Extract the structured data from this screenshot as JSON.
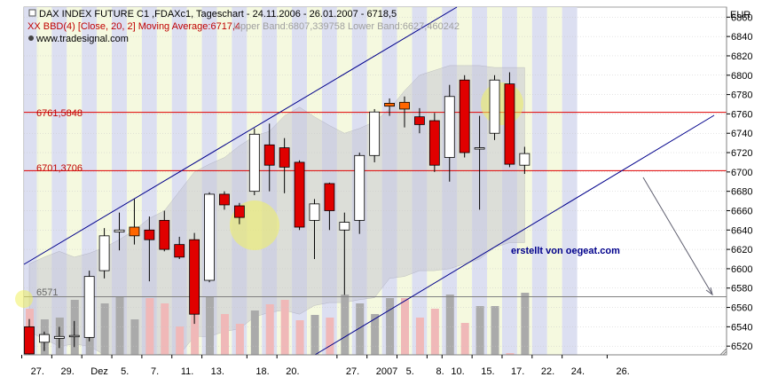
{
  "header": {
    "line1": "DAX INDEX FUTURE C1 ,FDAXc1, Tageschart - 24.11.2006 - 26.01.2007 - 6718,5",
    "line2_series": "XX BBD(4) [Close, 20, 2] Moving Average:6717,4",
    "line2_bands": "Upper Band:6807,339758 Lower Band:6627,460242",
    "line3": "www.tradesignal.com",
    "currency": "EUR"
  },
  "colors": {
    "up_candle": "#ffffff",
    "down_candle": "#e00000",
    "channel": "#00008b",
    "level_line": "#e00000",
    "band_fill": "#c8c8d4",
    "volume_up": "#aaaaaa",
    "volume_down": "#f0b8b8",
    "highlight": "#f0f060",
    "stripe_a": "#d8dcf0",
    "stripe_b": "#f4f8dc"
  },
  "annotations": {
    "credit": "erstellt von oegeat.com",
    "level_high": "6761,5848",
    "level_low": "6701,3706",
    "level_volume": "6571"
  },
  "chart_data": {
    "type": "candlestick",
    "title": "DAX INDEX FUTURE C1 ,FDAXc1, Tageschart - 24.11.2006 - 26.01.2007 - 6718,5",
    "y_unit": "EUR",
    "ylim": [
      6510,
      6870
    ],
    "y_ticks": [
      6520,
      6540,
      6560,
      6580,
      6600,
      6620,
      6640,
      6660,
      6680,
      6700,
      6720,
      6740,
      6760,
      6780,
      6800,
      6820,
      6840,
      6860
    ],
    "x_tick_labels": [
      "27.",
      "29.",
      "Dez",
      "5.",
      "7.",
      "11.",
      "13.",
      "18.",
      "20.",
      "27.",
      "2007",
      "5.",
      "8.",
      "10.",
      "15.",
      "17.",
      "22.",
      "24.",
      "26."
    ],
    "horizontal_levels": [
      6761.5848,
      6701.3706,
      6571
    ],
    "candles": [
      {
        "o": 6540,
        "h": 6548,
        "l": 6510,
        "c": 6512
      },
      {
        "o": 6524,
        "h": 6535,
        "l": 6515,
        "c": 6532
      },
      {
        "o": 6528,
        "h": 6540,
        "l": 6518,
        "c": 6530
      },
      {
        "o": 6530,
        "h": 6546,
        "l": 6519,
        "c": 6531
      },
      {
        "o": 6529,
        "h": 6598,
        "l": 6525,
        "c": 6592
      },
      {
        "o": 6598,
        "h": 6642,
        "l": 6590,
        "c": 6634
      },
      {
        "o": 6638,
        "h": 6658,
        "l": 6619,
        "c": 6640
      },
      {
        "o": 6634,
        "h": 6672,
        "l": 6625,
        "c": 6643
      },
      {
        "o": 6640,
        "h": 6654,
        "l": 6587,
        "c": 6630
      },
      {
        "o": 6650,
        "h": 6660,
        "l": 6618,
        "c": 6620
      },
      {
        "o": 6625,
        "h": 6633,
        "l": 6610,
        "c": 6612
      },
      {
        "o": 6630,
        "h": 6637,
        "l": 6543,
        "c": 6553
      },
      {
        "o": 6588,
        "h": 6679,
        "l": 6586,
        "c": 6677
      },
      {
        "o": 6677,
        "h": 6680,
        "l": 6661,
        "c": 6666
      },
      {
        "o": 6665,
        "h": 6668,
        "l": 6646,
        "c": 6653
      },
      {
        "o": 6680,
        "h": 6745,
        "l": 6676,
        "c": 6739
      },
      {
        "o": 6728,
        "h": 6750,
        "l": 6680,
        "c": 6707
      },
      {
        "o": 6725,
        "h": 6735,
        "l": 6678,
        "c": 6705
      },
      {
        "o": 6710,
        "h": 6712,
        "l": 6640,
        "c": 6643
      },
      {
        "o": 6650,
        "h": 6672,
        "l": 6610,
        "c": 6667
      },
      {
        "o": 6688,
        "h": 6689,
        "l": 6640,
        "c": 6660
      },
      {
        "o": 6640,
        "h": 6658,
        "l": 6573,
        "c": 6648
      },
      {
        "o": 6650,
        "h": 6720,
        "l": 6636,
        "c": 6717
      },
      {
        "o": 6717,
        "h": 6765,
        "l": 6710,
        "c": 6762
      },
      {
        "o": 6768,
        "h": 6776,
        "l": 6758,
        "c": 6771
      },
      {
        "o": 6772,
        "h": 6778,
        "l": 6746,
        "c": 6765
      },
      {
        "o": 6757,
        "h": 6766,
        "l": 6740,
        "c": 6749
      },
      {
        "o": 6753,
        "h": 6761,
        "l": 6700,
        "c": 6707
      },
      {
        "o": 6715,
        "h": 6790,
        "l": 6690,
        "c": 6778
      },
      {
        "o": 6795,
        "h": 6800,
        "l": 6715,
        "c": 6720
      },
      {
        "o": 6725,
        "h": 6758,
        "l": 6661,
        "c": 6725
      },
      {
        "o": 6740,
        "h": 6800,
        "l": 6733,
        "c": 6795
      },
      {
        "o": 6791,
        "h": 6803,
        "l": 6705,
        "c": 6708
      },
      {
        "o": 6707,
        "h": 6726,
        "l": 6698,
        "c": 6719
      }
    ],
    "volume_relative": [
      0.52,
      0.4,
      0.42,
      0.62,
      0.7,
      0.58,
      0.66,
      0.4,
      0.64,
      0.58,
      0.32,
      0.6,
      0.65,
      0.46,
      0.35,
      0.5,
      0.57,
      0.62,
      0.39,
      0.45,
      0.42,
      0.68,
      0.58,
      0.46,
      0.64,
      0.64,
      0.42,
      0.52,
      0.68,
      0.36,
      0.55,
      0.55,
      0.02,
      0.7
    ],
    "bollinger_upper": [
      6605,
      6612,
      6618,
      6612,
      6616,
      6622,
      6630,
      6640,
      6652,
      6660,
      6680,
      6700,
      6708,
      6715,
      6727,
      6737,
      6742,
      6758,
      6767,
      6757,
      6748,
      6740,
      6745,
      6752,
      6765,
      6784,
      6800,
      6805,
      6810,
      6810,
      6810,
      6808,
      6808,
      6808
    ],
    "bollinger_lower": [
      6535,
      6527,
      6520,
      6522,
      6520,
      6510,
      6510,
      6510,
      6510,
      6512,
      6510,
      6530,
      6530,
      6535,
      6538,
      6550,
      6555,
      6557,
      6553,
      6562,
      6565,
      6565,
      6568,
      6570,
      6590,
      6592,
      6598,
      6598,
      6600,
      6605,
      6610,
      6622,
      6627,
      6627
    ]
  }
}
